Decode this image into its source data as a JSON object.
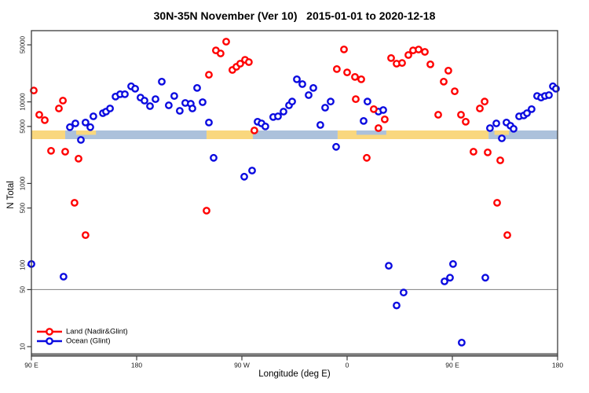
{
  "chart_data": {
    "type": "scatter",
    "title": "30N-35N November (Ver 10)   2015-01-01 to 2020-12-18",
    "xlabel": "Longitude (deg E)",
    "ylabel": "N Total",
    "x_axis": {
      "range_deg": [
        90,
        540
      ],
      "ticks": [
        {
          "lon": 90,
          "label": "90 E"
        },
        {
          "lon": 180,
          "label": "180"
        },
        {
          "lon": 270,
          "label": "90 W"
        },
        {
          "lon": 360,
          "label": "0"
        },
        {
          "lon": 450,
          "label": "90 E"
        },
        {
          "lon": 540,
          "label": "180"
        }
      ]
    },
    "y_axis": {
      "scale": "log",
      "ticks": [
        {
          "value": 10,
          "label": "10"
        },
        {
          "value": 50,
          "label": "50"
        },
        {
          "value": 100,
          "label": "100"
        },
        {
          "value": 500,
          "label": "500"
        },
        {
          "value": 1000,
          "label": "1000"
        },
        {
          "value": 5000,
          "label": "5000"
        },
        {
          "value": 10000,
          "label": "10000"
        },
        {
          "value": 50000,
          "label": "50000"
        }
      ]
    },
    "reference_line_value": 50,
    "legend_position": "bottom-left",
    "surface_band": {
      "land_color": "#F9D77E",
      "ocean_color": "#ACC1DB",
      "segments": [
        {
          "type": "land",
          "from": 90,
          "to": 118.9
        },
        {
          "type": "ocean",
          "from": 118.9,
          "to": 239.8
        },
        {
          "type": "land",
          "from": 239.8,
          "to": 279.4
        },
        {
          "type": "ocean",
          "from": 279.4,
          "to": 351.9
        },
        {
          "type": "land",
          "from": 351.9,
          "to": 481
        },
        {
          "type": "ocean",
          "from": 481,
          "to": 540
        }
      ],
      "top_half_overlays": [
        {
          "type": "land",
          "from": 128.3,
          "to": 145.2
        },
        {
          "type": "ocean",
          "from": 368,
          "to": 393.5
        },
        {
          "type": "land",
          "from": 486,
          "to": 498.4
        }
      ]
    },
    "series": [
      {
        "name": "Ocean (Glint)",
        "color": "#0B0BE0",
        "points": [
          [
            90,
            103
          ],
          [
            117.5,
            72
          ],
          [
            122.9,
            4890
          ],
          [
            127.6,
            5450
          ],
          [
            132.3,
            3420
          ],
          [
            136.3,
            5580
          ],
          [
            140.4,
            4890
          ],
          [
            143,
            6650
          ],
          [
            151.1,
            7270
          ],
          [
            153.8,
            7600
          ],
          [
            157.2,
            8300
          ],
          [
            161.9,
            11600
          ],
          [
            165.9,
            12400
          ],
          [
            169.9,
            12400
          ],
          [
            175.3,
            15500
          ],
          [
            178.7,
            14500
          ],
          [
            183.3,
            11300
          ],
          [
            186.7,
            10350
          ],
          [
            191.4,
            8870
          ],
          [
            196.1,
            10800
          ],
          [
            201.5,
            17700
          ],
          [
            207.5,
            9070
          ],
          [
            212.2,
            11800
          ],
          [
            216.9,
            7760
          ],
          [
            221.6,
            9700
          ],
          [
            226.3,
            9480
          ],
          [
            227.7,
            8300
          ],
          [
            231.7,
            14800
          ],
          [
            236.4,
            9910
          ],
          [
            241.8,
            5580
          ],
          [
            245.8,
            2060
          ],
          [
            272,
            1210
          ],
          [
            278.7,
            1440
          ],
          [
            283.4,
            5700
          ],
          [
            286.8,
            5450
          ],
          [
            290.1,
            4990
          ],
          [
            296.8,
            6520
          ],
          [
            300.9,
            6650
          ],
          [
            305.6,
            7600
          ],
          [
            310.3,
            9070
          ],
          [
            313,
            10100
          ],
          [
            317,
            18900
          ],
          [
            321.7,
            16500
          ],
          [
            327.1,
            12100
          ],
          [
            331.1,
            14800
          ],
          [
            337.1,
            5210
          ],
          [
            341.2,
            8490
          ],
          [
            345.9,
            10100
          ],
          [
            350.6,
            2810
          ],
          [
            374.1,
            5830
          ],
          [
            377.4,
            10100
          ],
          [
            386.8,
            7600
          ],
          [
            390.9,
            7940
          ],
          [
            395.6,
            98
          ],
          [
            402.3,
            32
          ],
          [
            408.3,
            46
          ],
          [
            443.3,
            63
          ],
          [
            448,
            70
          ],
          [
            450.6,
            103
          ],
          [
            458,
            11.2
          ],
          [
            478.2,
            70
          ],
          [
            482.2,
            4770
          ],
          [
            487.6,
            5450
          ],
          [
            492.3,
            3570
          ],
          [
            496.3,
            5580
          ],
          [
            499.7,
            5100
          ],
          [
            502.4,
            4670
          ],
          [
            507.1,
            6650
          ],
          [
            511.1,
            6810
          ],
          [
            513.8,
            7270
          ],
          [
            517.8,
            8130
          ],
          [
            522.5,
            11800
          ],
          [
            525.9,
            11300
          ],
          [
            529.2,
            11800
          ],
          [
            532.6,
            12100
          ],
          [
            536,
            15500
          ],
          [
            538.6,
            14500
          ]
        ]
      },
      {
        "name": "Land (Nadir&Glint)",
        "color": "#FF0000",
        "points": [
          [
            92,
            13800
          ],
          [
            96.7,
            6950
          ],
          [
            101.4,
            5960
          ],
          [
            106.8,
            2510
          ],
          [
            113.5,
            8300
          ],
          [
            116.9,
            10350
          ],
          [
            118.9,
            2450
          ],
          [
            130.3,
            2010
          ],
          [
            126.9,
            579
          ],
          [
            136.3,
            233
          ],
          [
            239.8,
            464
          ],
          [
            241.8,
            21500
          ],
          [
            247.8,
            42800
          ],
          [
            251.8,
            39200
          ],
          [
            256.6,
            54700
          ],
          [
            261.9,
            24600
          ],
          [
            265.3,
            26900
          ],
          [
            268.6,
            29400
          ],
          [
            272.7,
            32800
          ],
          [
            276,
            30700
          ],
          [
            280.7,
            4460
          ],
          [
            351.2,
            25200
          ],
          [
            357.3,
            43900
          ],
          [
            360,
            23000
          ],
          [
            366.7,
            20200
          ],
          [
            372.1,
            18900
          ],
          [
            367.4,
            10800
          ],
          [
            382.8,
            8130
          ],
          [
            392.2,
            6100
          ],
          [
            386.8,
            4770
          ],
          [
            376.8,
            2060
          ],
          [
            397.6,
            34400
          ],
          [
            402.3,
            29400
          ],
          [
            407,
            30000
          ],
          [
            412.4,
            37500
          ],
          [
            416.4,
            42800
          ],
          [
            421.1,
            43800
          ],
          [
            426.5,
            41000
          ],
          [
            431.2,
            28800
          ],
          [
            437.9,
            6950
          ],
          [
            442.6,
            17700
          ],
          [
            446.6,
            24100
          ],
          [
            452,
            13500
          ],
          [
            457.4,
            6950
          ],
          [
            461.4,
            5700
          ],
          [
            468.1,
            2450
          ],
          [
            473.5,
            8300
          ],
          [
            477.6,
            10100
          ],
          [
            480.2,
            2400
          ],
          [
            488.3,
            579
          ],
          [
            491,
            1920
          ],
          [
            497,
            233
          ]
        ]
      }
    ]
  }
}
